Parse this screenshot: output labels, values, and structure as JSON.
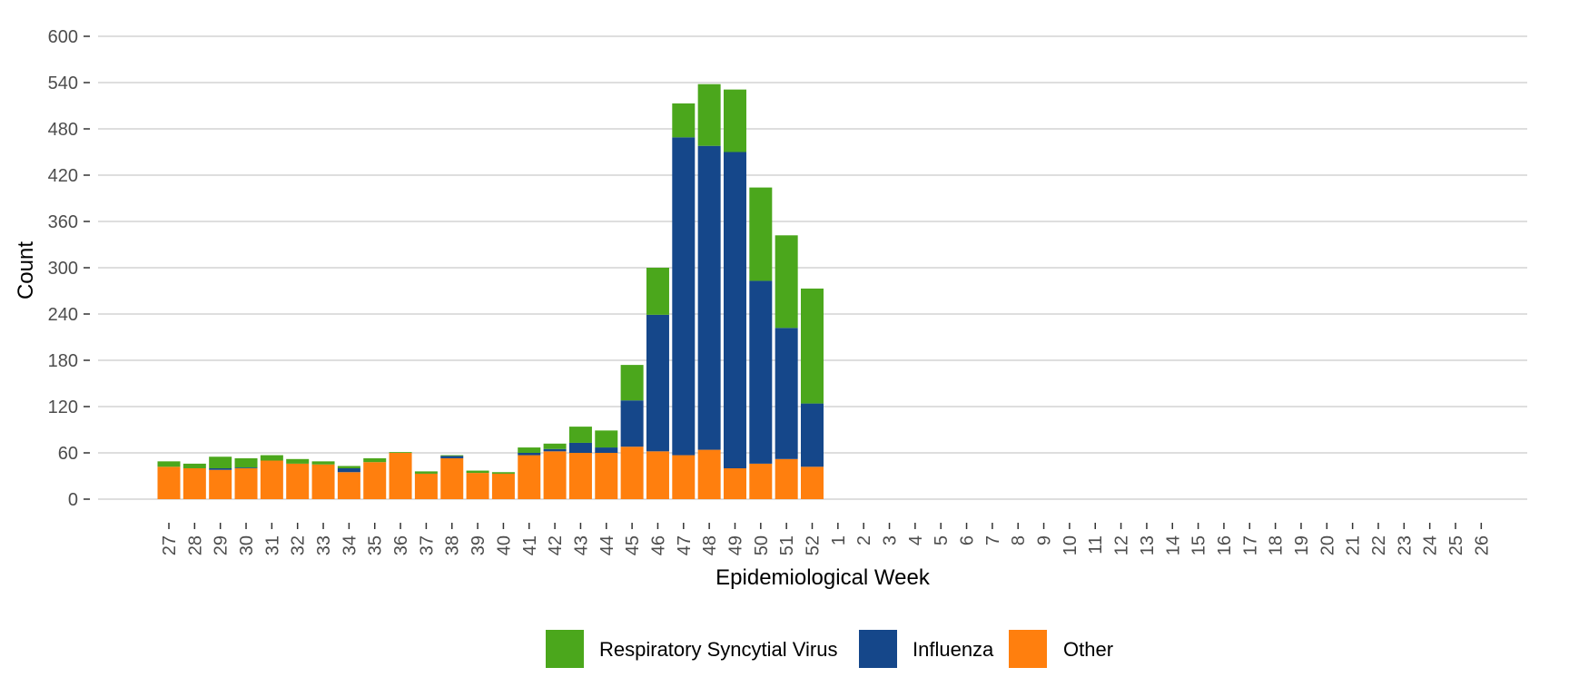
{
  "chart_data": {
    "type": "bar",
    "stacked": true,
    "title": "",
    "xlabel": "Epidemiological Week",
    "ylabel": "Count",
    "ylim": [
      0,
      600
    ],
    "yticks": [
      0,
      60,
      120,
      180,
      240,
      300,
      360,
      420,
      480,
      540,
      600
    ],
    "grid": "horizontal",
    "legend_position": "bottom",
    "categories": [
      "27",
      "28",
      "29",
      "30",
      "31",
      "32",
      "33",
      "34",
      "35",
      "36",
      "37",
      "38",
      "39",
      "40",
      "41",
      "42",
      "43",
      "44",
      "45",
      "46",
      "47",
      "48",
      "49",
      "50",
      "51",
      "52",
      "1",
      "2",
      "3",
      "4",
      "5",
      "6",
      "7",
      "8",
      "9",
      "10",
      "11",
      "12",
      "13",
      "14",
      "15",
      "16",
      "17",
      "18",
      "19",
      "20",
      "21",
      "22",
      "23",
      "24",
      "25",
      "26"
    ],
    "series": [
      {
        "name": "Other",
        "color": "#FF7F0E",
        "values": [
          42,
          40,
          38,
          40,
          50,
          46,
          45,
          35,
          48,
          60,
          33,
          53,
          34,
          33,
          57,
          62,
          60,
          60,
          68,
          62,
          57,
          64,
          40,
          46,
          52,
          42,
          null,
          null,
          null,
          null,
          null,
          null,
          null,
          null,
          null,
          null,
          null,
          null,
          null,
          null,
          null,
          null,
          null,
          null,
          null,
          null,
          null,
          null,
          null,
          null,
          null,
          null
        ]
      },
      {
        "name": "Influenza",
        "color": "#15478A",
        "values": [
          0,
          0,
          2,
          1,
          0,
          0,
          0,
          5,
          0,
          0,
          0,
          3,
          0,
          0,
          3,
          3,
          13,
          7,
          60,
          177,
          412,
          394,
          410,
          237,
          170,
          82,
          null,
          null,
          null,
          null,
          null,
          null,
          null,
          null,
          null,
          null,
          null,
          null,
          null,
          null,
          null,
          null,
          null,
          null,
          null,
          null,
          null,
          null,
          null,
          null,
          null,
          null
        ]
      },
      {
        "name": "Respiratory Syncytial Virus",
        "color": "#4BA71C",
        "values": [
          7,
          6,
          15,
          12,
          7,
          6,
          4,
          3,
          5,
          1,
          3,
          1,
          3,
          2,
          7,
          7,
          21,
          22,
          46,
          61,
          44,
          80,
          81,
          121,
          120,
          149,
          null,
          null,
          null,
          null,
          null,
          null,
          null,
          null,
          null,
          null,
          null,
          null,
          null,
          null,
          null,
          null,
          null,
          null,
          null,
          null,
          null,
          null,
          null,
          null,
          null,
          null
        ]
      }
    ]
  },
  "legend": {
    "items": [
      {
        "label": "Respiratory Syncytial Virus",
        "color": "#4BA71C"
      },
      {
        "label": "Influenza",
        "color": "#15478A"
      },
      {
        "label": "Other",
        "color": "#FF7F0E"
      }
    ]
  }
}
